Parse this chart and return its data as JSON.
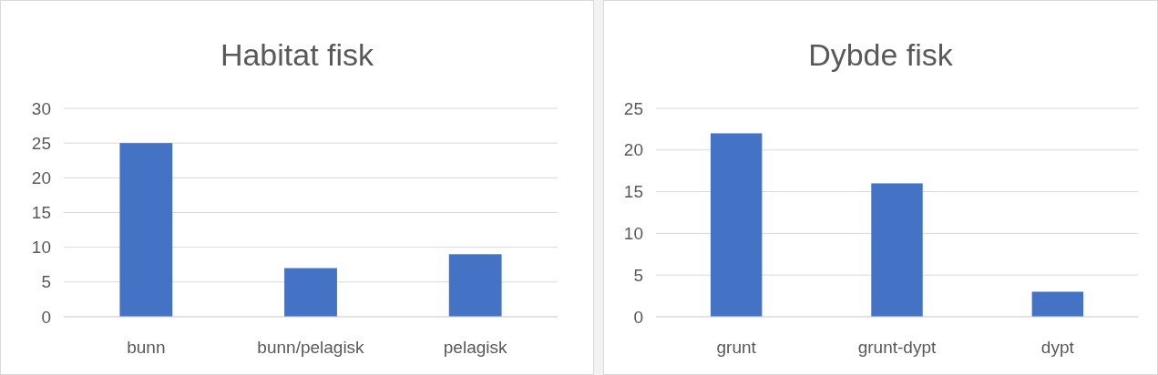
{
  "chart_data": [
    {
      "type": "bar",
      "title": "Habitat fisk",
      "categories": [
        "bunn",
        "bunn/pelagisk",
        "pelagisk"
      ],
      "values": [
        25,
        7,
        9
      ],
      "color": "#4472c4",
      "ylim": [
        0,
        30
      ],
      "yticks": [
        0,
        5,
        10,
        15,
        20,
        25,
        30
      ],
      "grid": "y"
    },
    {
      "type": "bar",
      "title": "Dybde fisk",
      "categories": [
        "grunt",
        "grunt-dypt",
        "dypt"
      ],
      "values": [
        22,
        16,
        3
      ],
      "color": "#4472c4",
      "ylim": [
        0,
        25
      ],
      "yticks": [
        0,
        5,
        10,
        15,
        20,
        25
      ],
      "grid": "y"
    }
  ]
}
